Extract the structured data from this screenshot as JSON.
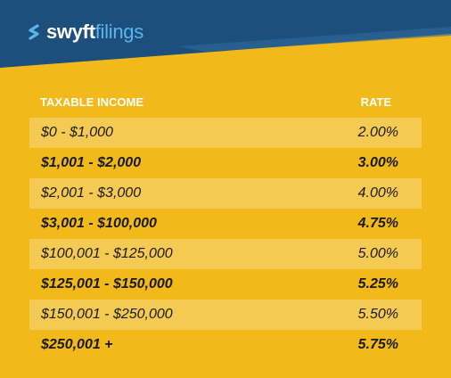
{
  "brand": {
    "name_part1": "swyft",
    "name_part2": "filings",
    "logo_icon": "s-chevron-icon",
    "colors": {
      "header_dark": "#1D4F7C",
      "header_mid": "#2F6A9C",
      "accent": "#5AB6EA",
      "background": "#F2B91B",
      "row_shade": "#F4CA52"
    }
  },
  "table": {
    "headers": {
      "income": "TAXABLE INCOME",
      "rate": "RATE"
    },
    "rows": [
      {
        "income": "$0 - $1,000",
        "rate": "2.00%"
      },
      {
        "income": "$1,001 - $2,000",
        "rate": "3.00%"
      },
      {
        "income": "$2,001 - $3,000",
        "rate": "4.00%"
      },
      {
        "income": "$3,001 - $100,000",
        "rate": "4.75%"
      },
      {
        "income": "$100,001 - $125,000",
        "rate": "5.00%"
      },
      {
        "income": "$125,001 - $150,000",
        "rate": "5.25%"
      },
      {
        "income": "$150,001 - $250,000",
        "rate": "5.50%"
      },
      {
        "income": "$250,001 +",
        "rate": "5.75%"
      }
    ]
  }
}
